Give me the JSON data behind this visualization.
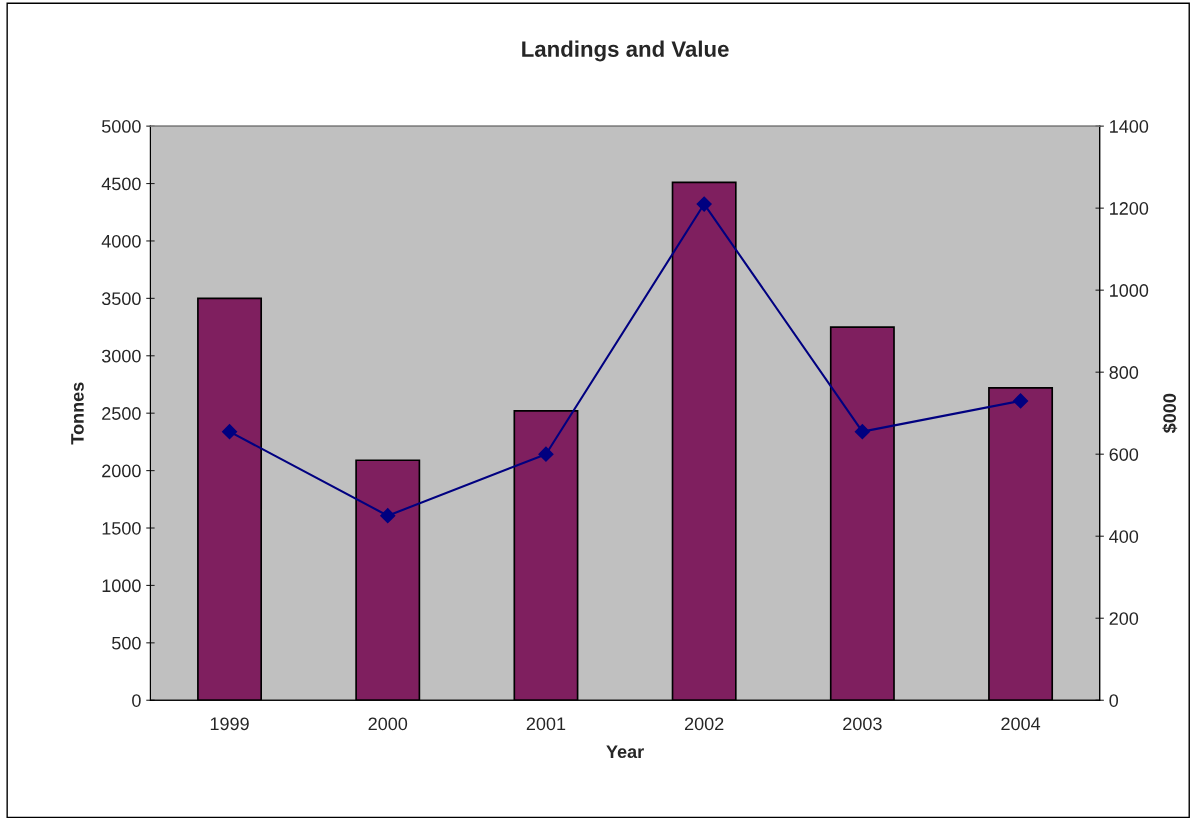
{
  "chart_data": {
    "type": "bar",
    "title": "Landings and Value",
    "xlabel": "Year",
    "ylabel": "Tonnes",
    "y2label": "$000",
    "categories": [
      "1999",
      "2000",
      "2001",
      "2002",
      "2003",
      "2004"
    ],
    "series": [
      {
        "color": "#7f1f5f",
        "values": [
          3500,
          2090,
          2520,
          4510,
          3250,
          2720
        ]
      },
      {
        "type": "line",
        "axis": "y2",
        "color": "#000080",
        "marker": "diamond",
        "values": [
          655,
          450,
          600,
          1210,
          655,
          730
        ]
      }
    ],
    "ylim": [
      0,
      5000
    ],
    "yticks": [
      0,
      500,
      1000,
      1500,
      2000,
      2500,
      3000,
      3500,
      4000,
      4500,
      5000
    ],
    "y2lim": [
      0,
      1400
    ],
    "y2ticks": [
      0,
      200,
      400,
      600,
      800,
      1000,
      1200,
      1400
    ],
    "grid": false,
    "legend": false
  }
}
